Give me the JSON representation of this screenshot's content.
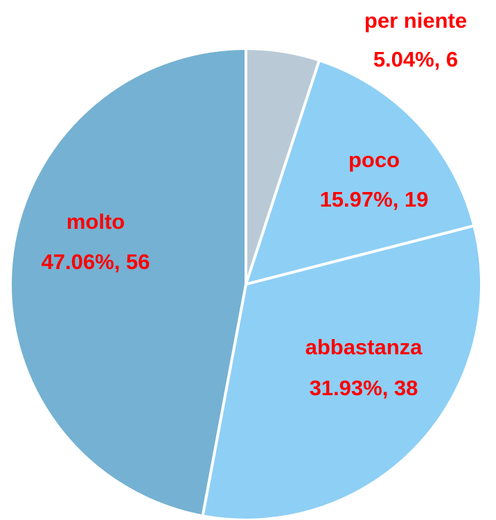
{
  "chart_data": {
    "type": "pie",
    "categories": [
      "per niente",
      "poco",
      "abbastanza",
      "molto"
    ],
    "values": [
      6,
      19,
      38,
      56
    ],
    "value_labels": [
      "5.04%, 6",
      "15.97%, 19",
      "31.93%, 38",
      "47.06%, 56"
    ],
    "colors": [
      "#b9cad6",
      "#8ecff5",
      "#8ecff5",
      "#75b1d2"
    ]
  }
}
